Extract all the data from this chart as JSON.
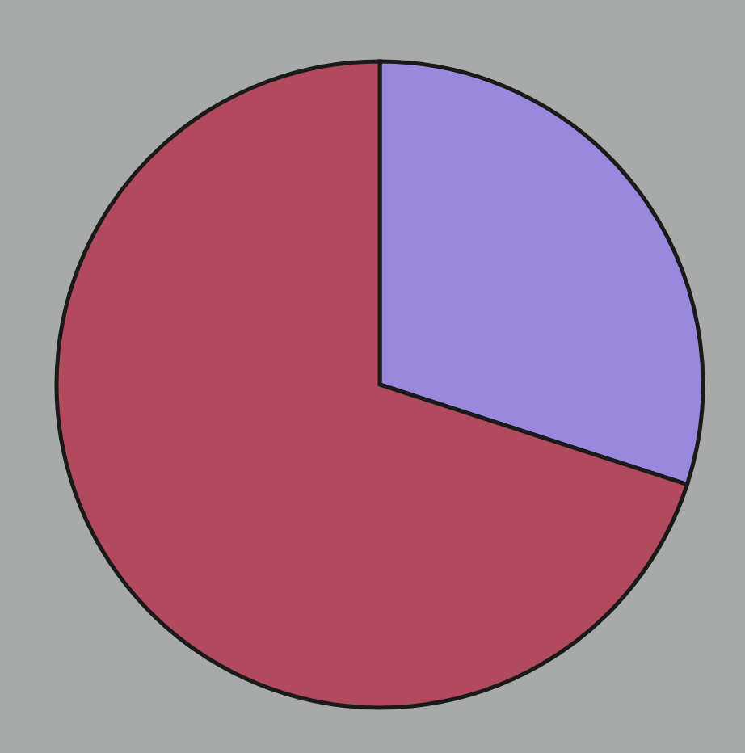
{
  "chart_data": {
    "type": "pie",
    "categories": [
      null,
      null
    ],
    "values": [
      30,
      70
    ],
    "colors": [
      "#9a88de",
      "#b04a5c"
    ]
  }
}
